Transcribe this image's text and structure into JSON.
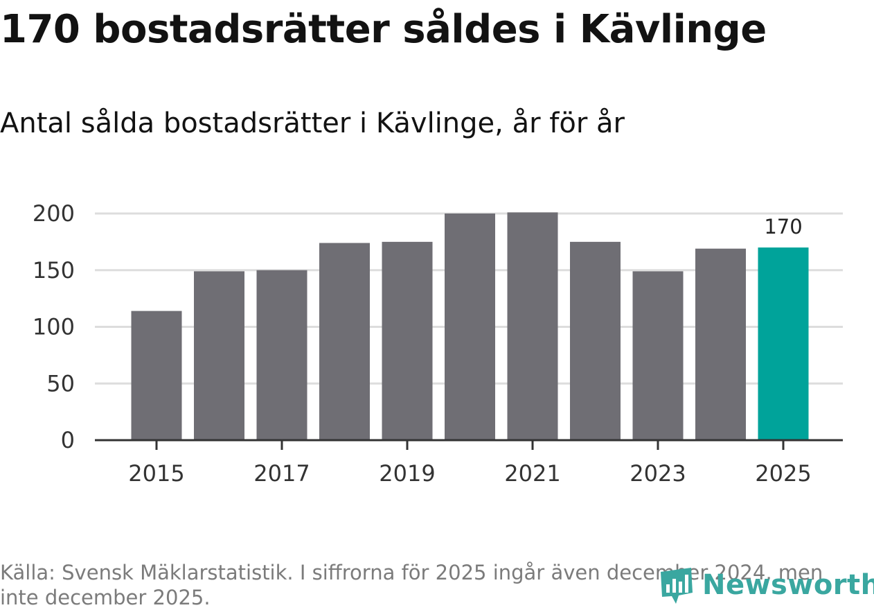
{
  "title": "170 bostadsrätter såldes i Kävlinge",
  "subtitle": "Antal sålda bostadsrätter i Kävlinge, år för år",
  "source": "Källa: Svensk Mäklarstatistik. I siffrorna för 2025 ingår även december 2024, men inte december 2025.",
  "brand": "Newsworthy",
  "colors": {
    "bar": "#6f6e74",
    "highlight": "#00a39a",
    "grid": "#dddddd",
    "axis": "#333333",
    "brand": "#3aa7a0"
  },
  "chart_data": {
    "type": "bar",
    "title": "170 bostadsrätter såldes i Kävlinge",
    "subtitle": "Antal sålda bostadsrätter i Kävlinge, år för år",
    "xlabel": "",
    "ylabel": "",
    "categories": [
      "2015",
      "2016",
      "2017",
      "2018",
      "2019",
      "2020",
      "2021",
      "2022",
      "2023",
      "2024",
      "2025"
    ],
    "values": [
      114,
      149,
      150,
      174,
      175,
      200,
      201,
      175,
      149,
      169,
      170
    ],
    "highlight_index": 10,
    "data_labels": [
      {
        "index": 10,
        "text": "170"
      }
    ],
    "x_tick_labels": [
      "2015",
      "2017",
      "2019",
      "2021",
      "2023",
      "2025"
    ],
    "y_ticks": [
      "0",
      "50",
      "100",
      "150",
      "200"
    ],
    "ylim": [
      0,
      200
    ],
    "grid": true
  }
}
